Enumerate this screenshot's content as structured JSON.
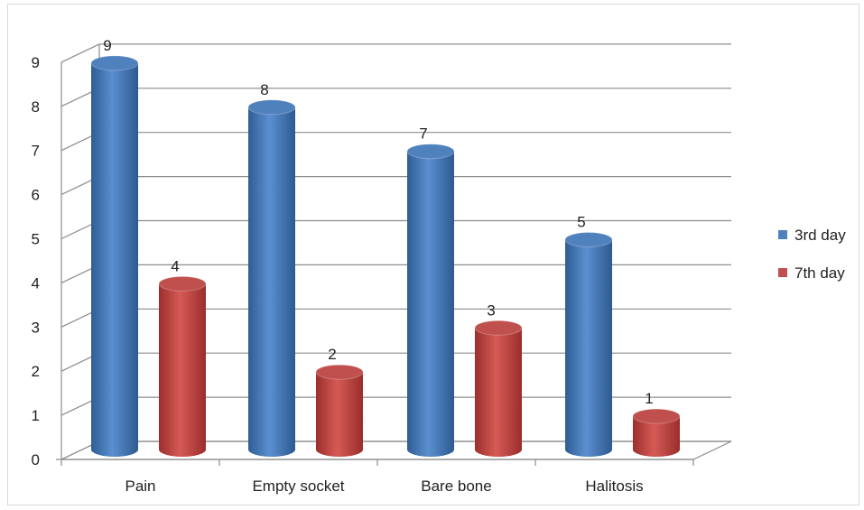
{
  "chart_data": {
    "type": "bar",
    "title": "",
    "xlabel": "",
    "ylabel": "",
    "ylim": [
      0,
      9
    ],
    "yticks": [
      0,
      1,
      2,
      3,
      4,
      5,
      6,
      7,
      8,
      9
    ],
    "categories": [
      "Pain",
      "Empty socket",
      "Bare bone",
      "Halitosis"
    ],
    "series": [
      {
        "name": "3rd day",
        "values": [
          9,
          8,
          7,
          5
        ],
        "color": "#4F81BD"
      },
      {
        "name": "7th day",
        "values": [
          4,
          2,
          3,
          1
        ],
        "color": "#C0504D"
      }
    ],
    "grid": true,
    "legend_position": "right",
    "style": "3d-cylinder"
  }
}
